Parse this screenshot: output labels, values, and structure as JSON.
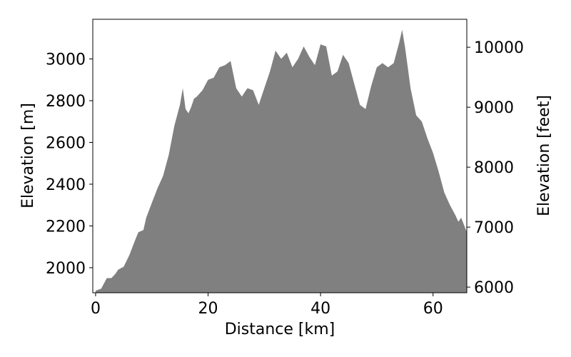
{
  "chart_data": {
    "type": "area",
    "title": "",
    "xlabel": "Distance [km]",
    "ylabel": "Elevation [m]",
    "ylabel_right": "Elevation [feet]",
    "xlim": [
      -0.5,
      66
    ],
    "ylim": [
      1880,
      3190
    ],
    "ylim_right_feet": [
      5906,
      10466
    ],
    "xticks": [
      0,
      20,
      40,
      60
    ],
    "yticks": [
      2000,
      2200,
      2400,
      2600,
      2800,
      3000
    ],
    "yticks_right": [
      6000,
      7000,
      8000,
      9000,
      10000
    ],
    "grid": false,
    "fill_color": "#808080",
    "x": [
      0,
      1,
      2,
      2.8,
      3.5,
      4,
      5,
      6,
      7,
      7.6,
      8.5,
      9,
      10,
      11,
      12,
      13,
      14,
      15,
      15.5,
      16,
      16.5,
      17,
      17.5,
      18,
      19,
      20,
      21,
      22,
      23,
      24,
      25,
      26,
      27,
      28,
      29,
      30,
      31,
      32,
      32.5,
      33,
      34,
      35,
      36,
      37,
      38,
      39,
      40,
      41,
      42,
      43,
      44,
      45,
      46,
      47,
      48,
      49,
      50,
      51,
      52,
      53,
      54,
      54.5,
      55,
      55.5,
      56,
      57,
      58,
      59,
      60,
      61,
      62,
      63,
      64,
      64.5,
      65,
      66
    ],
    "y": [
      1890,
      1900,
      1950,
      1950,
      1970,
      1990,
      2005,
      2060,
      2130,
      2170,
      2180,
      2240,
      2310,
      2380,
      2440,
      2540,
      2680,
      2780,
      2860,
      2760,
      2740,
      2770,
      2810,
      2820,
      2850,
      2900,
      2910,
      2960,
      2970,
      2990,
      2860,
      2820,
      2860,
      2850,
      2780,
      2860,
      2940,
      3040,
      3020,
      3000,
      3030,
      2960,
      3000,
      3060,
      3010,
      2970,
      3070,
      3060,
      2920,
      2940,
      3020,
      2980,
      2880,
      2780,
      2760,
      2870,
      2960,
      2980,
      2960,
      2980,
      3080,
      3140,
      3060,
      2960,
      2860,
      2730,
      2700,
      2620,
      2550,
      2460,
      2360,
      2300,
      2250,
      2220,
      2240,
      2170
    ]
  }
}
